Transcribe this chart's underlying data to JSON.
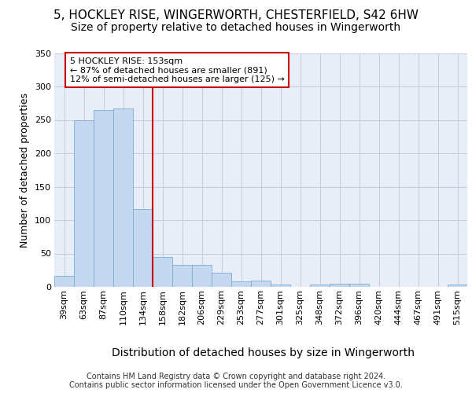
{
  "title_line1": "5, HOCKLEY RISE, WINGERWORTH, CHESTERFIELD, S42 6HW",
  "title_line2": "Size of property relative to detached houses in Wingerworth",
  "xlabel": "Distribution of detached houses by size in Wingerworth",
  "ylabel": "Number of detached properties",
  "footer_line1": "Contains HM Land Registry data © Crown copyright and database right 2024.",
  "footer_line2": "Contains public sector information licensed under the Open Government Licence v3.0.",
  "bar_labels": [
    "39sqm",
    "63sqm",
    "87sqm",
    "110sqm",
    "134sqm",
    "158sqm",
    "182sqm",
    "206sqm",
    "229sqm",
    "253sqm",
    "277sqm",
    "301sqm",
    "325sqm",
    "348sqm",
    "372sqm",
    "396sqm",
    "420sqm",
    "444sqm",
    "467sqm",
    "491sqm",
    "515sqm"
  ],
  "bar_values": [
    16,
    249,
    265,
    267,
    116,
    45,
    33,
    33,
    21,
    8,
    9,
    3,
    0,
    4,
    5,
    5,
    0,
    0,
    0,
    0,
    3
  ],
  "bar_color": "#c5d8f0",
  "bar_edgecolor": "#7aadd4",
  "vline_color": "#cc0000",
  "vline_x_pos": 4.5,
  "annotation_text_line1": "5 HOCKLEY RISE: 153sqm",
  "annotation_text_line2": "← 87% of detached houses are smaller (891)",
  "annotation_text_line3": "12% of semi-detached houses are larger (125) →",
  "ylim": [
    0,
    350
  ],
  "yticks": [
    0,
    50,
    100,
    150,
    200,
    250,
    300,
    350
  ],
  "bg_color": "#e8eef8",
  "grid_color": "#c0cce0",
  "title1_fontsize": 11,
  "title2_fontsize": 10,
  "ylabel_fontsize": 9,
  "xlabel_fontsize": 10,
  "tick_fontsize": 8,
  "footer_fontsize": 7
}
